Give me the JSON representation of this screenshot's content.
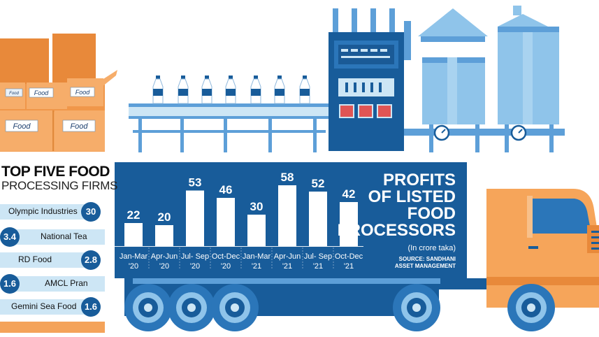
{
  "chart_data": {
    "type": "bar",
    "title": "PROFITS OF LISTED FOOD PROCESSORS",
    "title_lines": [
      "PROFITS",
      "OF LISTED",
      "FOOD",
      "PROCESSORS"
    ],
    "subtitle": "(In crore taka)",
    "source_lines": [
      "SOURCE: SANDHANI",
      "ASSET MANAGEMENT"
    ],
    "categories": [
      [
        "Jan-Mar",
        "'20"
      ],
      [
        "Apr-Jun",
        "'20"
      ],
      [
        "Jul- Sep",
        "'20"
      ],
      [
        "Oct-Dec",
        "'20"
      ],
      [
        "Jan-Mar",
        "'21"
      ],
      [
        "Apr-Jun",
        "'21"
      ],
      [
        "Jul- Sep",
        "'21"
      ],
      [
        "Oct-Dec",
        "'21"
      ]
    ],
    "values": [
      22,
      20,
      53,
      46,
      30,
      58,
      52,
      42
    ],
    "data_labels": [
      "22",
      "20",
      "53",
      "46",
      "30",
      "58",
      "52",
      "42"
    ],
    "ylim": [
      0,
      65
    ],
    "grid": false,
    "bar_color": "#ffffff",
    "background_color": "#185c9a"
  },
  "ranking": {
    "title_line1": "TOP FIVE FOOD",
    "title_line2": "PROCESSING FIRMS",
    "items": [
      {
        "name": "Olympic Industries",
        "value": "30",
        "side": "right"
      },
      {
        "name": "National Tea",
        "value": "3.4",
        "side": "left"
      },
      {
        "name": "RD Food",
        "value": "2.8",
        "side": "right"
      },
      {
        "name": "AMCL Pran",
        "value": "1.6",
        "side": "left"
      },
      {
        "name": "Gemini Sea Food",
        "value": "1.6",
        "side": "right"
      }
    ]
  },
  "boxes": {
    "labels": [
      "Food",
      "Food",
      "Food",
      "Food",
      "Food"
    ]
  },
  "colors": {
    "primary_blue": "#185c9a",
    "light_blue": "#cde6f5",
    "steel_blue": "#5d9fd8",
    "orange": "#f4a35a",
    "dark_orange": "#e8893a",
    "truck_orange": "#f6a55a"
  },
  "icons": [
    "cardboard-box-icon",
    "milk-bottle-icon",
    "conveyor-belt-icon",
    "control-panel-icon",
    "storage-tank-icon",
    "truck-icon",
    "wheel-icon"
  ]
}
